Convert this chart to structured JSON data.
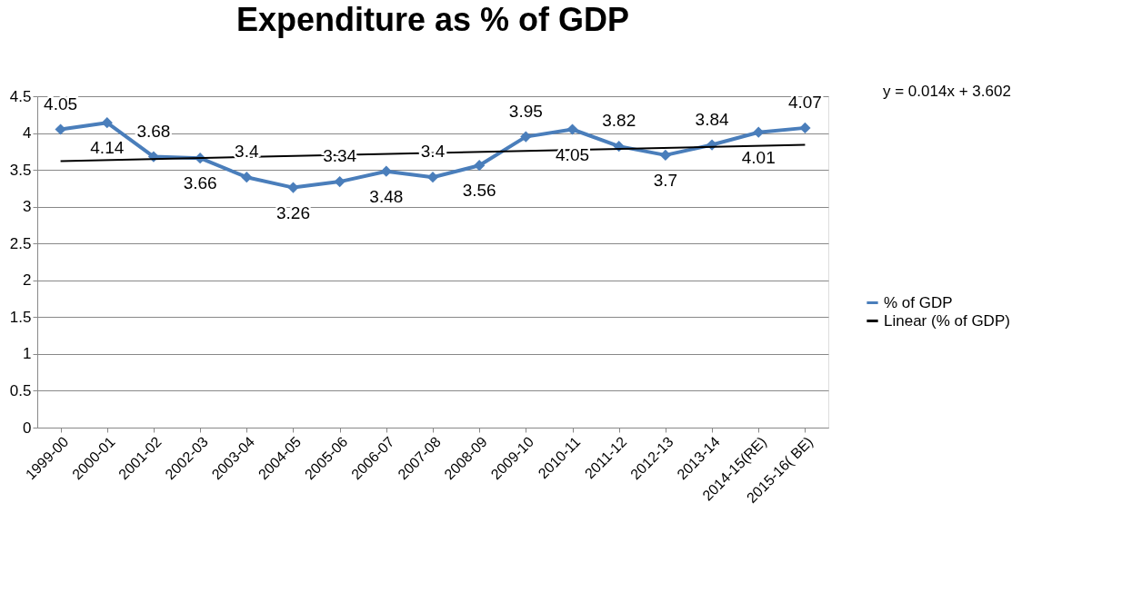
{
  "chart_data": {
    "type": "line",
    "title": "Expenditure as % of GDP",
    "categories": [
      "1999-00",
      "2000-01",
      "2001-02",
      "2002-03",
      "2003-04",
      "2004-05",
      "2005-06",
      "2006-07",
      "2007-08",
      "2008-09",
      "2009-10",
      "2010-11",
      "2011-12",
      "2012-13",
      "2013-14",
      "2014-15(RE)",
      "2015-16( BE)"
    ],
    "series": [
      {
        "name": "% of GDP",
        "color": "#4a7ebb",
        "marker": "diamond",
        "values": [
          4.05,
          4.14,
          3.68,
          3.66,
          3.4,
          3.26,
          3.34,
          3.48,
          3.4,
          3.56,
          3.95,
          4.05,
          3.82,
          3.7,
          3.84,
          4.01,
          4.07
        ],
        "value_labels": [
          "4.05",
          "4.14",
          "3.68",
          "3.66",
          "3.4",
          "3.26",
          "3.34",
          "3.48",
          "3.4",
          "3.56",
          "3.95",
          "4.05",
          "3.82",
          "3.7",
          "3.84",
          "4.01",
          "4.07"
        ]
      },
      {
        "name": "Linear (% of GDP)",
        "type": "line",
        "color": "#000000",
        "marker": "none",
        "x": [
          "1999-00",
          "2015-16( BE)"
        ],
        "values": [
          3.62,
          3.84
        ]
      }
    ],
    "ylim": [
      0,
      4.5
    ],
    "yticks": [
      0,
      0.5,
      1,
      1.5,
      2,
      2.5,
      3,
      3.5,
      4,
      4.5
    ],
    "grid": "y",
    "legend": "right",
    "annotations": [
      "y = 0.014x + 3.602"
    ]
  }
}
